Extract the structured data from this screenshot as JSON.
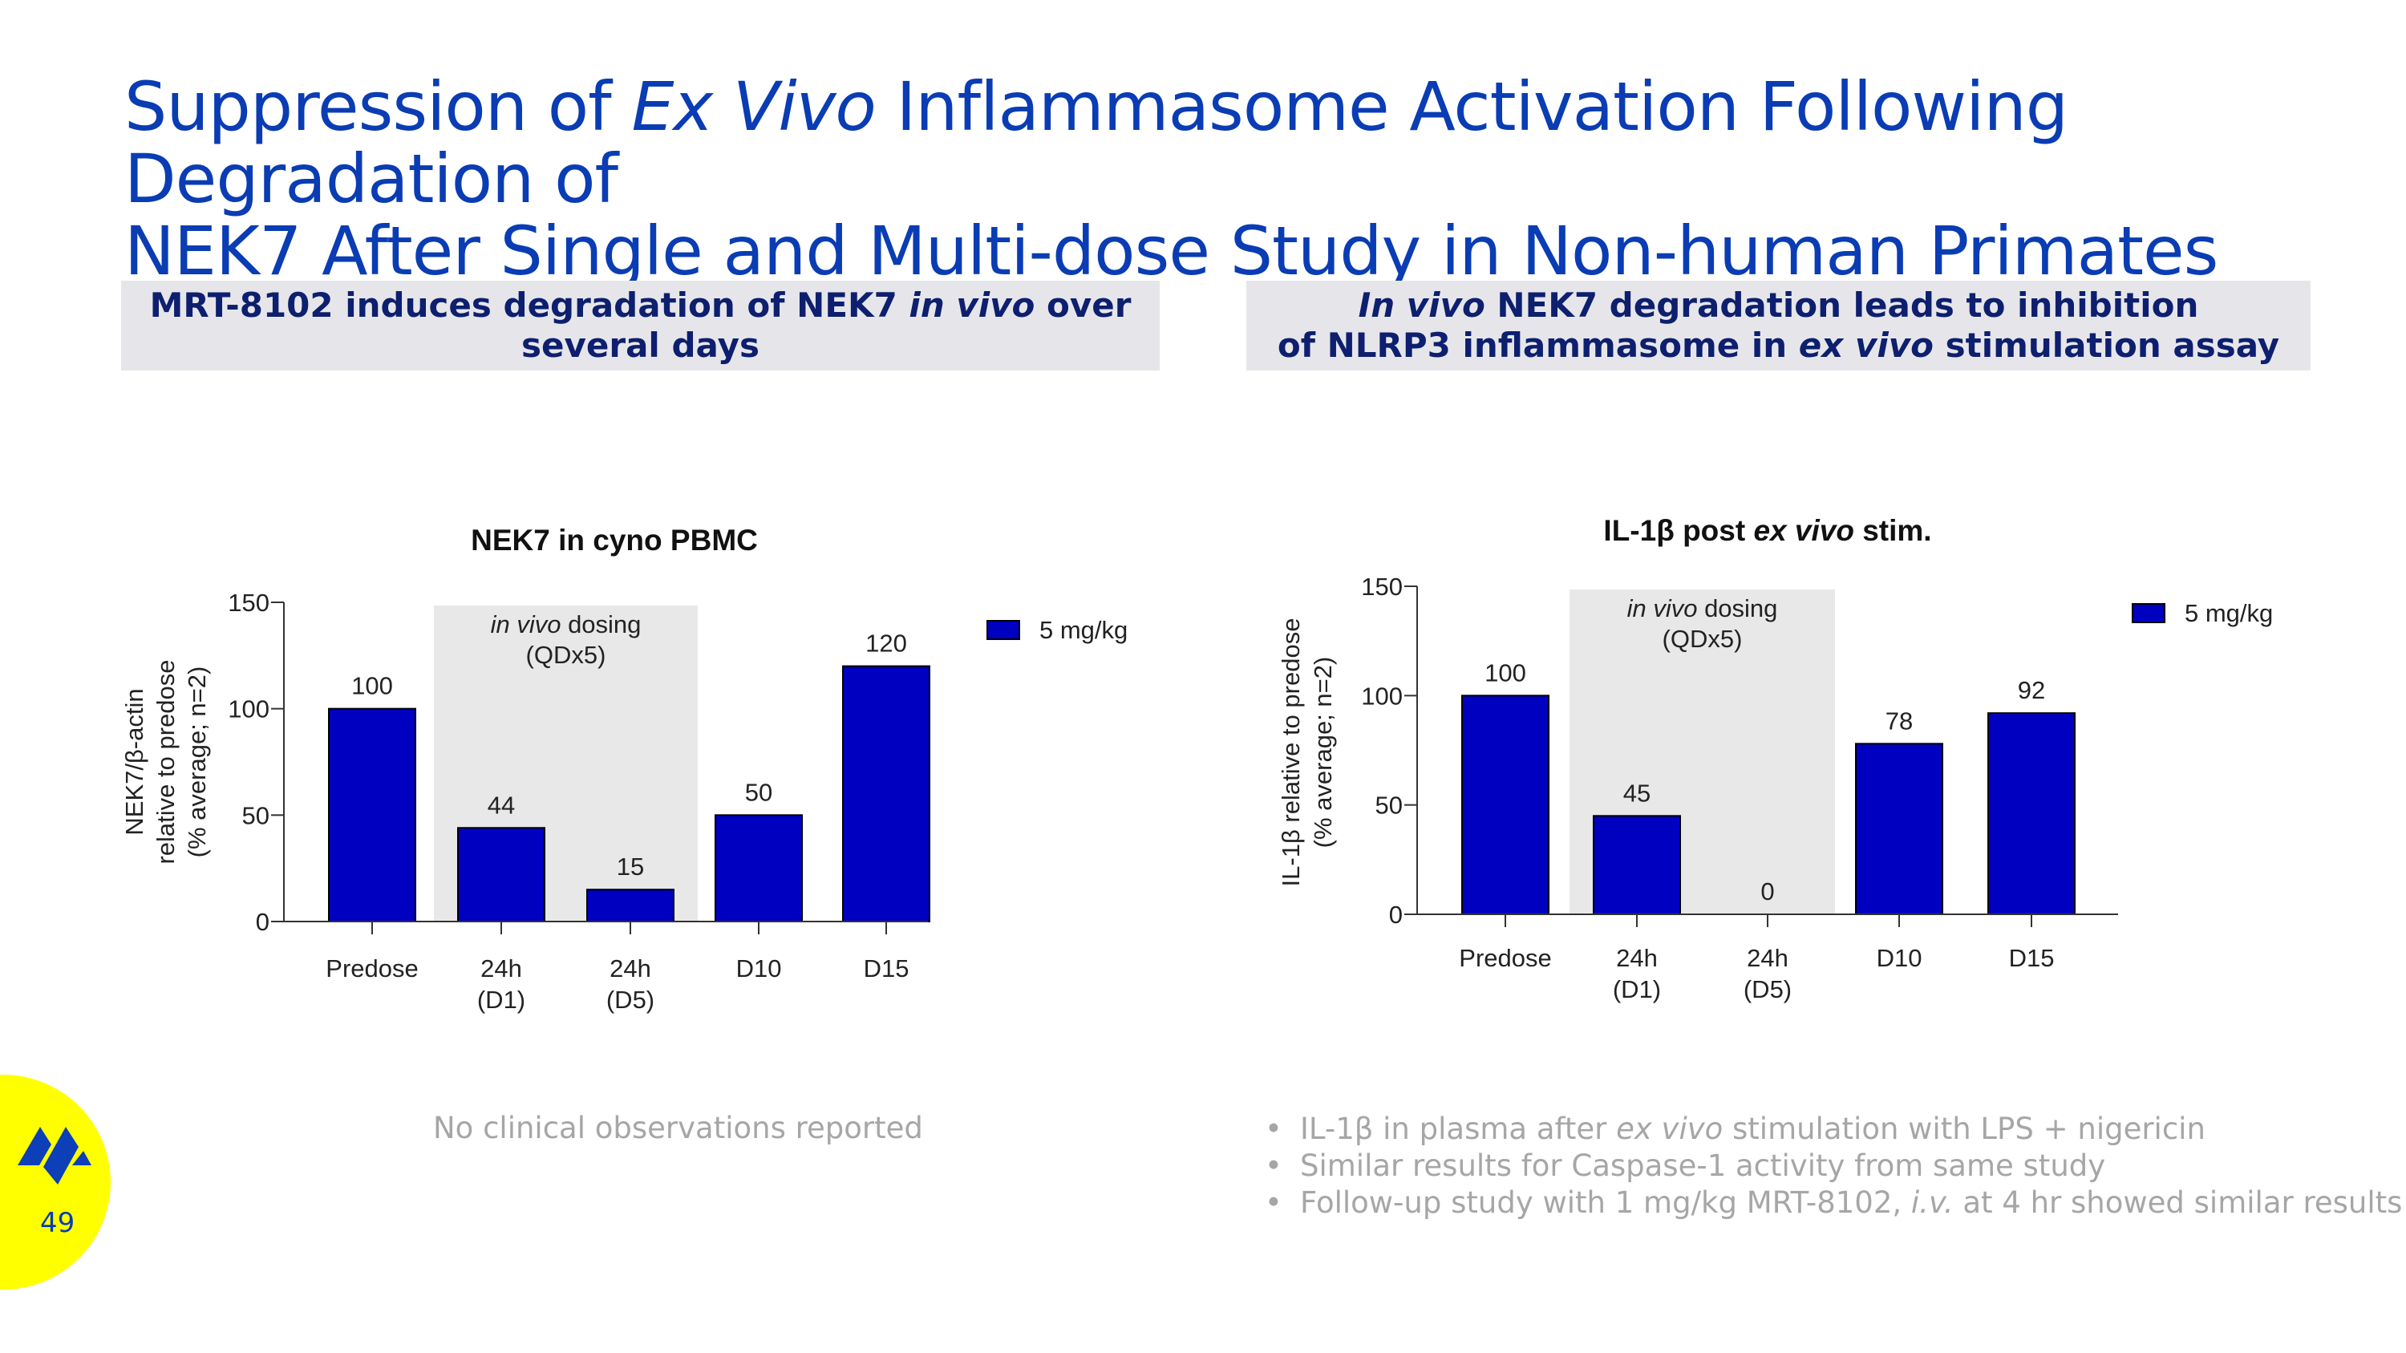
{
  "title": {
    "part1": "Suppression of ",
    "italic": "Ex Vivo",
    "part2": " Inflammasome Activation Following Degradation of",
    "line2": "NEK7 After Single and Multi-dose Study in Non-human Primates"
  },
  "left_header": {
    "a": "MRT-8102 induces degradation of NEK7 ",
    "italic": "in vivo",
    "b": " over",
    "line2": "several days"
  },
  "right_header": {
    "italic": "In vivo",
    "a": " NEK7 degradation leads to inhibition",
    "line2a": "of NLRP3 inflammasome in ",
    "italic2": "ex vivo",
    "line2b": " stimulation assay"
  },
  "chart_data": [
    {
      "type": "bar",
      "title": "NEK7 in cyno PBMC",
      "ylabel": [
        "NEK7/β-actin",
        "relative to predose",
        "(% average; n=2)"
      ],
      "categories": [
        [
          "Predose"
        ],
        [
          "24h",
          "(D1)"
        ],
        [
          "24h",
          "(D5)"
        ],
        [
          "D10"
        ],
        [
          "D15"
        ]
      ],
      "series": [
        {
          "name": "5 mg/kg",
          "values": [
            100,
            44,
            15,
            50,
            120
          ],
          "color": "#0000c0"
        }
      ],
      "data_labels": [
        "100",
        "44",
        "15",
        "50",
        "120"
      ],
      "yticks": [
        0,
        50,
        100,
        150
      ],
      "ylim": [
        0,
        150
      ],
      "shaded_region": {
        "from_category": 1,
        "to_category": 2,
        "label_italic": "in vivo",
        "label_rest": " dosing",
        "label_line2": "(QDx5)"
      },
      "legend": "top-right"
    },
    {
      "type": "bar",
      "title_a": "IL-1β post ",
      "title_italic": "ex vivo",
      "title_b": " stim.",
      "ylabel": [
        "IL-1β relative to predose",
        "(% average; n=2)"
      ],
      "categories": [
        [
          "Predose"
        ],
        [
          "24h",
          "(D1)"
        ],
        [
          "24h",
          "(D5)"
        ],
        [
          "D10"
        ],
        [
          "D15"
        ]
      ],
      "series": [
        {
          "name": "5 mg/kg",
          "values": [
            100,
            45,
            0,
            78,
            92
          ],
          "color": "#0000c0"
        }
      ],
      "data_labels": [
        "100",
        "45",
        "0",
        "78",
        "92"
      ],
      "yticks": [
        0,
        50,
        100,
        150
      ],
      "ylim": [
        0,
        150
      ],
      "shaded_region": {
        "from_category": 1,
        "to_category": 2,
        "label_italic": "in vivo",
        "label_rest": " dosing",
        "label_line2": "(QDx5)"
      },
      "legend": "top-right"
    }
  ],
  "footnote_left": "No clinical observations reported",
  "bullets": [
    {
      "a": "IL-1β in plasma after ",
      "italic": "ex vivo",
      "b": " stimulation with LPS + nigericin"
    },
    {
      "a": "Similar results for Caspase-1 activity from same study",
      "italic": "",
      "b": ""
    },
    {
      "a": "Follow-up study with 1 mg/kg MRT-8102, ",
      "italic": "i.v.",
      "b": " at 4 hr showed similar results"
    }
  ],
  "page_number": "49",
  "colors": {
    "title": "#0a3cb4",
    "bar": "#0000c0",
    "badge": "#ffff00",
    "header_bg": "#e6e6ea",
    "shade": "#e8e8e8"
  }
}
